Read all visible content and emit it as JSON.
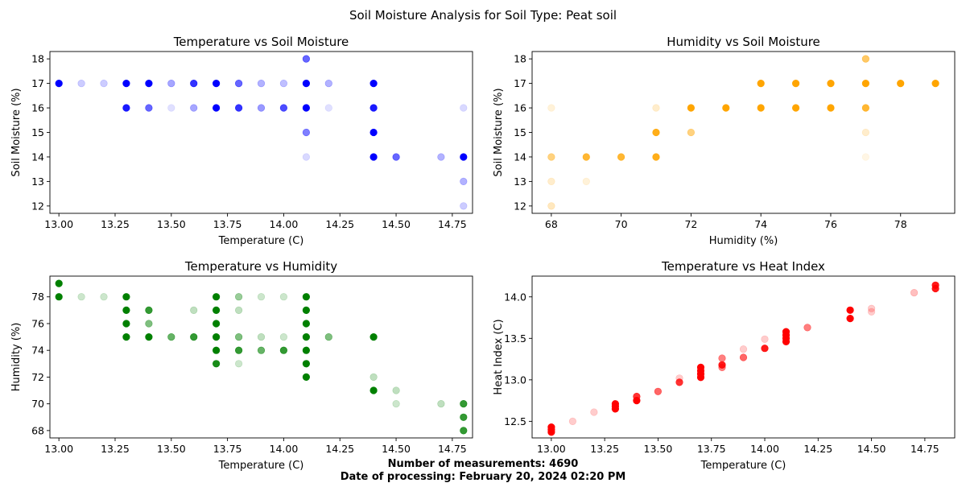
{
  "figure": {
    "title": "Soil Moisture Analysis for Soil Type: Peat soil",
    "footer_line1": "Number of measurements: 4690",
    "footer_line2": "Date of processing: February 20, 2024 02:20 PM"
  },
  "chart_data": [
    {
      "type": "scatter",
      "title": "Temperature vs Soil Moisture",
      "xlabel": "Temperature (C)",
      "ylabel": "Soil Moisture (%)",
      "xlim": [
        12.96,
        14.84
      ],
      "ylim": [
        11.7,
        18.3
      ],
      "xticks": [
        13.0,
        13.25,
        13.5,
        13.75,
        14.0,
        14.25,
        14.5,
        14.75
      ],
      "xtick_labels": [
        "13.00",
        "13.25",
        "13.50",
        "13.75",
        "14.00",
        "14.25",
        "14.50",
        "14.75"
      ],
      "yticks": [
        12,
        13,
        14,
        15,
        16,
        17,
        18
      ],
      "ytick_labels": [
        "12",
        "13",
        "14",
        "15",
        "16",
        "17",
        "18"
      ],
      "color": "#0000ff",
      "points": [
        [
          13.0,
          17,
          1
        ],
        [
          13.1,
          17,
          0.2
        ],
        [
          13.2,
          17,
          0.2
        ],
        [
          13.3,
          17,
          1
        ],
        [
          13.3,
          16,
          0.9
        ],
        [
          13.4,
          17,
          1
        ],
        [
          13.4,
          16,
          0.6
        ],
        [
          13.5,
          17,
          0.35
        ],
        [
          13.5,
          16,
          0.12
        ],
        [
          13.6,
          17,
          0.8
        ],
        [
          13.6,
          16,
          0.35
        ],
        [
          13.7,
          17,
          1
        ],
        [
          13.7,
          16,
          1
        ],
        [
          13.8,
          17,
          0.6
        ],
        [
          13.8,
          16,
          0.8
        ],
        [
          13.9,
          17,
          0.3
        ],
        [
          13.9,
          16,
          0.4
        ],
        [
          14.0,
          17,
          0.25
        ],
        [
          14.0,
          16,
          0.7
        ],
        [
          14.1,
          18,
          0.6
        ],
        [
          14.1,
          17,
          1
        ],
        [
          14.1,
          16,
          1
        ],
        [
          14.1,
          15,
          0.5
        ],
        [
          14.1,
          14,
          0.15
        ],
        [
          14.2,
          17,
          0.3
        ],
        [
          14.2,
          16,
          0.12
        ],
        [
          14.4,
          17,
          1
        ],
        [
          14.4,
          16,
          0.9
        ],
        [
          14.4,
          15,
          1
        ],
        [
          14.4,
          14,
          1
        ],
        [
          14.5,
          14,
          0.6
        ],
        [
          14.7,
          14,
          0.3
        ],
        [
          14.8,
          16,
          0.15
        ],
        [
          14.8,
          14,
          1
        ],
        [
          14.8,
          13,
          0.3
        ],
        [
          14.8,
          12,
          0.2
        ]
      ]
    },
    {
      "type": "scatter",
      "title": "Humidity vs Soil Moisture",
      "xlabel": "Humidity (%)",
      "ylabel": "Soil Moisture (%)",
      "xlim": [
        67.45,
        79.55
      ],
      "ylim": [
        11.7,
        18.3
      ],
      "xticks": [
        68,
        70,
        72,
        74,
        76,
        78
      ],
      "xtick_labels": [
        "68",
        "70",
        "72",
        "74",
        "76",
        "78"
      ],
      "yticks": [
        12,
        13,
        14,
        15,
        16,
        17,
        18
      ],
      "ytick_labels": [
        "12",
        "13",
        "14",
        "15",
        "16",
        "17",
        "18"
      ],
      "color": "#ffa500",
      "points": [
        [
          68,
          16,
          0.15
        ],
        [
          68,
          14,
          0.5
        ],
        [
          68,
          13,
          0.2
        ],
        [
          68,
          12,
          0.25
        ],
        [
          69,
          14,
          0.8
        ],
        [
          69,
          13,
          0.15
        ],
        [
          70,
          14,
          0.8
        ],
        [
          71,
          16,
          0.2
        ],
        [
          71,
          15,
          0.9
        ],
        [
          71,
          14,
          0.9
        ],
        [
          72,
          16,
          1
        ],
        [
          72,
          15,
          0.5
        ],
        [
          73,
          16,
          1
        ],
        [
          74,
          17,
          1
        ],
        [
          74,
          16,
          1
        ],
        [
          75,
          17,
          1
        ],
        [
          75,
          16,
          1
        ],
        [
          76,
          17,
          1
        ],
        [
          76,
          16,
          1
        ],
        [
          77,
          18,
          0.6
        ],
        [
          77,
          17,
          1
        ],
        [
          77,
          16,
          0.8
        ],
        [
          77,
          15,
          0.2
        ],
        [
          77,
          14,
          0.1
        ],
        [
          78,
          17,
          1
        ],
        [
          79,
          17,
          1
        ]
      ]
    },
    {
      "type": "scatter",
      "title": "Temperature vs Humidity",
      "xlabel": "Temperature (C)",
      "ylabel": "Humidity (%)",
      "xlim": [
        12.96,
        14.84
      ],
      "ylim": [
        67.45,
        79.55
      ],
      "xticks": [
        13.0,
        13.25,
        13.5,
        13.75,
        14.0,
        14.25,
        14.5,
        14.75
      ],
      "xtick_labels": [
        "13.00",
        "13.25",
        "13.50",
        "13.75",
        "14.00",
        "14.25",
        "14.50",
        "14.75"
      ],
      "yticks": [
        68,
        70,
        72,
        74,
        76,
        78
      ],
      "ytick_labels": [
        "68",
        "70",
        "72",
        "74",
        "76",
        "78"
      ],
      "color": "#008000",
      "points": [
        [
          13.0,
          79,
          1
        ],
        [
          13.0,
          78,
          1
        ],
        [
          13.1,
          78,
          0.2
        ],
        [
          13.2,
          78,
          0.2
        ],
        [
          13.3,
          78,
          1
        ],
        [
          13.3,
          77,
          1
        ],
        [
          13.3,
          76,
          1
        ],
        [
          13.3,
          75,
          1
        ],
        [
          13.4,
          77,
          0.8
        ],
        [
          13.4,
          76,
          0.5
        ],
        [
          13.4,
          75,
          1
        ],
        [
          13.5,
          75,
          0.6
        ],
        [
          13.6,
          77,
          0.25
        ],
        [
          13.6,
          75,
          0.8
        ],
        [
          13.7,
          78,
          1
        ],
        [
          13.7,
          77,
          1
        ],
        [
          13.7,
          76,
          1
        ],
        [
          13.7,
          75,
          1
        ],
        [
          13.7,
          74,
          1
        ],
        [
          13.7,
          73,
          0.9
        ],
        [
          13.8,
          78,
          0.4
        ],
        [
          13.8,
          77,
          0.25
        ],
        [
          13.8,
          75,
          0.5
        ],
        [
          13.8,
          74,
          0.8
        ],
        [
          13.8,
          73,
          0.2
        ],
        [
          13.9,
          78,
          0.2
        ],
        [
          13.9,
          75,
          0.25
        ],
        [
          13.9,
          74,
          0.6
        ],
        [
          14.0,
          78,
          0.2
        ],
        [
          14.0,
          75,
          0.2
        ],
        [
          14.0,
          74,
          0.8
        ],
        [
          14.1,
          78,
          1
        ],
        [
          14.1,
          77,
          1
        ],
        [
          14.1,
          76,
          1
        ],
        [
          14.1,
          75,
          1
        ],
        [
          14.1,
          74,
          1
        ],
        [
          14.1,
          73,
          1
        ],
        [
          14.1,
          72,
          1
        ],
        [
          14.2,
          75,
          0.5
        ],
        [
          14.4,
          75,
          1
        ],
        [
          14.4,
          72,
          0.25
        ],
        [
          14.4,
          71,
          1
        ],
        [
          14.5,
          71,
          0.25
        ],
        [
          14.5,
          70,
          0.2
        ],
        [
          14.7,
          70,
          0.25
        ],
        [
          14.8,
          70,
          0.8
        ],
        [
          14.8,
          69,
          0.8
        ],
        [
          14.8,
          68,
          0.8
        ]
      ]
    },
    {
      "type": "scatter",
      "title": "Temperature vs Heat Index",
      "xlabel": "Temperature (C)",
      "ylabel": "Heat Index (C)",
      "xlim": [
        12.91,
        14.89
      ],
      "ylim": [
        12.3,
        14.25
      ],
      "xticks": [
        13.0,
        13.25,
        13.5,
        13.75,
        14.0,
        14.25,
        14.5,
        14.75
      ],
      "xtick_labels": [
        "13.00",
        "13.25",
        "13.50",
        "13.75",
        "14.00",
        "14.25",
        "14.50",
        "14.75"
      ],
      "yticks": [
        12.5,
        13.0,
        13.5,
        14.0
      ],
      "ytick_labels": [
        "12.5",
        "13.0",
        "13.5",
        "14.0"
      ],
      "color": "#ff0000",
      "points": [
        [
          13.0,
          12.37,
          1
        ],
        [
          13.0,
          12.4,
          1
        ],
        [
          13.0,
          12.43,
          1
        ],
        [
          13.1,
          12.5,
          0.2
        ],
        [
          13.2,
          12.61,
          0.2
        ],
        [
          13.3,
          12.65,
          1
        ],
        [
          13.3,
          12.68,
          1
        ],
        [
          13.3,
          12.71,
          1
        ],
        [
          13.4,
          12.75,
          1
        ],
        [
          13.4,
          12.8,
          0.8
        ],
        [
          13.5,
          12.86,
          0.6
        ],
        [
          13.6,
          12.97,
          0.8
        ],
        [
          13.6,
          13.02,
          0.2
        ],
        [
          13.7,
          13.03,
          1
        ],
        [
          13.7,
          13.07,
          1
        ],
        [
          13.7,
          13.11,
          1
        ],
        [
          13.7,
          13.15,
          1
        ],
        [
          13.8,
          13.15,
          0.5
        ],
        [
          13.8,
          13.18,
          0.9
        ],
        [
          13.8,
          13.26,
          0.5
        ],
        [
          13.9,
          13.27,
          0.6
        ],
        [
          13.9,
          13.37,
          0.2
        ],
        [
          14.0,
          13.38,
          0.9
        ],
        [
          14.0,
          13.49,
          0.2
        ],
        [
          14.1,
          13.46,
          1
        ],
        [
          14.1,
          13.5,
          1
        ],
        [
          14.1,
          13.54,
          1
        ],
        [
          14.1,
          13.58,
          1
        ],
        [
          14.2,
          13.63,
          0.5
        ],
        [
          14.4,
          13.74,
          1
        ],
        [
          14.4,
          13.84,
          1
        ],
        [
          14.5,
          13.82,
          0.2
        ],
        [
          14.5,
          13.86,
          0.2
        ],
        [
          14.7,
          14.05,
          0.25
        ],
        [
          14.8,
          14.1,
          0.9
        ],
        [
          14.8,
          14.14,
          0.9
        ]
      ]
    }
  ]
}
